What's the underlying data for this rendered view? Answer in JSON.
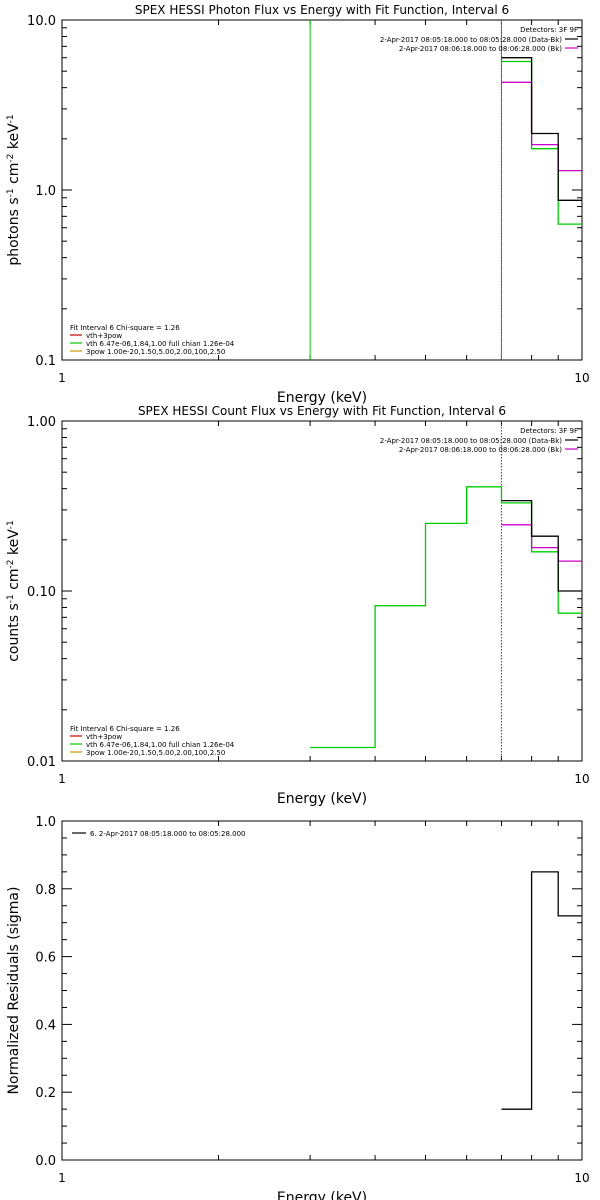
{
  "chart_data": [
    {
      "type": "line",
      "title": "SPEX HESSI Photon Flux vs Energy with Fit Function, Interval 6",
      "xlabel": "Energy (keV)",
      "ylabel_main": "photons s",
      "ylabel_parts": [
        "photons s",
        "-1",
        " cm",
        "-2",
        " keV",
        "-1"
      ],
      "xscale": "log",
      "yscale": "log",
      "xlim": [
        1,
        10
      ],
      "ylim": [
        0.1,
        10
      ],
      "xticks": [
        {
          "v": 1,
          "label": "1"
        },
        {
          "v": 10,
          "label": "10"
        }
      ],
      "yticks": [
        {
          "v": 0.1,
          "label": "0.1"
        },
        {
          "v": 1,
          "label": "1.0"
        },
        {
          "v": 10,
          "label": "10.0"
        }
      ],
      "legend_top": {
        "header": "Detectors: 3F 9F",
        "entries": [
          {
            "text": "2-Apr-2017 08:05:18.000 to 08:05:28.000 (Data-Bk)",
            "color": "#000000"
          },
          {
            "text": "2-Apr-2017 08:06:18.000 to 08:06:28.000 (Bk)",
            "color": "#cc00cc"
          }
        ]
      },
      "legend_bottom": {
        "header": "Fit Interval  6    Chi-square = 1.26",
        "entries": [
          {
            "text": "vth+3pow",
            "color": "#cc0000"
          },
          {
            "text": "vth 6.47e-06,1.84,1.00   full chian 1.26e-04",
            "color": "#00cc00"
          },
          {
            "text": "3pow 1.00e-20,1.50,5.00,2.00,100,2.50",
            "color": "#cc9900"
          }
        ]
      },
      "vlines": [
        {
          "x": 3,
          "color": "#00cc00",
          "dash": false
        },
        {
          "x": 7,
          "color": "#00cc00",
          "dash": false
        },
        {
          "x": 7,
          "color": "#cc00cc",
          "dash": true
        }
      ],
      "series": [
        {
          "color": "#00cc00",
          "edges": [
            7,
            8,
            9,
            10
          ],
          "values": [
            5.7,
            1.75,
            0.63
          ]
        },
        {
          "color": "#cc00cc",
          "edges": [
            7,
            8,
            9,
            10
          ],
          "values": [
            4.3,
            1.85,
            1.3
          ]
        },
        {
          "color": "#000000",
          "edges": [
            7,
            8,
            9,
            10
          ],
          "values": [
            6.0,
            2.15,
            0.87
          ]
        }
      ]
    },
    {
      "type": "line",
      "title": "SPEX HESSI Count Flux vs Energy with Fit Function, Interval 6",
      "xlabel": "Energy (keV)",
      "ylabel_main": "counts s",
      "ylabel_parts": [
        "counts s",
        "-1",
        " cm",
        "-2",
        " keV",
        "-1"
      ],
      "xscale": "log",
      "yscale": "log",
      "xlim": [
        1,
        10
      ],
      "ylim": [
        0.01,
        1
      ],
      "xticks": [
        {
          "v": 1,
          "label": "1"
        },
        {
          "v": 10,
          "label": "10"
        }
      ],
      "yticks": [
        {
          "v": 0.01,
          "label": "0.01"
        },
        {
          "v": 0.1,
          "label": "0.10"
        },
        {
          "v": 1,
          "label": "1.00"
        }
      ],
      "legend_top": {
        "header": "Detectors: 3F 9F",
        "entries": [
          {
            "text": "2-Apr-2017 08:05:18.000 to 08:05:28.000 (Data-Bk)",
            "color": "#000000"
          },
          {
            "text": "2-Apr-2017 08:06:18.000 to 08:06:28.000 (Bk)",
            "color": "#cc00cc"
          }
        ]
      },
      "legend_bottom": {
        "header": "Fit Interval  6    Chi-square = 1.26",
        "entries": [
          {
            "text": "vth+3pow",
            "color": "#cc0000"
          },
          {
            "text": "vth 6.47e-06,1.84,1.00   full chian 1.26e-04",
            "color": "#00cc00"
          },
          {
            "text": "3pow 1.00e-20,1.50,5.00,2.00,100,2.50",
            "color": "#cc9900"
          }
        ]
      },
      "vlines": [
        {
          "x": 7,
          "color": "#000000",
          "dash": true
        },
        {
          "x": 7,
          "color": "#cc00cc",
          "dash": true
        }
      ],
      "series": [
        {
          "color": "#00cc00",
          "edges": [
            3,
            4,
            5,
            6,
            7,
            8,
            9,
            10
          ],
          "values": [
            0.012,
            0.082,
            0.25,
            0.41,
            0.33,
            0.17,
            0.074
          ]
        },
        {
          "color": "#cc00cc",
          "edges": [
            7,
            8,
            9,
            10
          ],
          "values": [
            0.245,
            0.18,
            0.15
          ]
        },
        {
          "color": "#000000",
          "edges": [
            7,
            8,
            9,
            10
          ],
          "values": [
            0.34,
            0.21,
            0.1
          ]
        }
      ]
    },
    {
      "type": "line",
      "title": "",
      "xlabel": "Energy (keV)",
      "ylabel_main": "Normalized Residuals (sigma)",
      "ylabel_parts": [
        "Normalized Residuals (sigma)"
      ],
      "xscale": "log",
      "yscale": "linear",
      "xlim": [
        1,
        10
      ],
      "ylim": [
        0,
        1
      ],
      "xticks": [
        {
          "v": 1,
          "label": "1"
        },
        {
          "v": 10,
          "label": "10"
        }
      ],
      "yticks": [
        {
          "v": 0,
          "label": "0.0"
        },
        {
          "v": 0.2,
          "label": "0.2"
        },
        {
          "v": 0.4,
          "label": "0.4"
        },
        {
          "v": 0.6,
          "label": "0.6"
        },
        {
          "v": 0.8,
          "label": "0.8"
        },
        {
          "v": 1,
          "label": "1.0"
        }
      ],
      "legend_top_left": {
        "entries": [
          {
            "text": "6.  2-Apr-2017 08:05:18.000 to 08:05:28.000",
            "color": "#000000"
          }
        ]
      },
      "vlines": [],
      "series": [
        {
          "color": "#000000",
          "edges": [
            7,
            8,
            9,
            10
          ],
          "values": [
            0.15,
            0.85,
            0.72
          ]
        }
      ]
    }
  ]
}
